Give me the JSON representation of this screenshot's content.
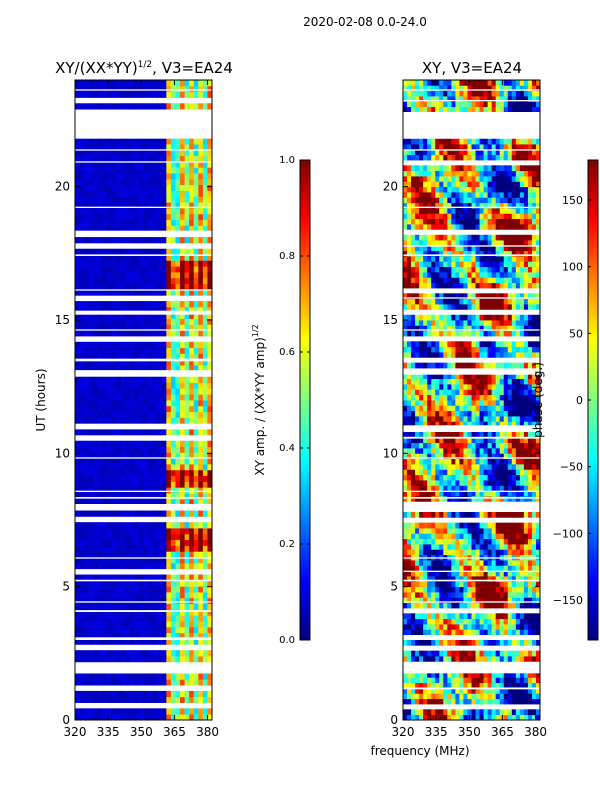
{
  "figure_title": "2020-02-08 0.0-24.0",
  "colors": {
    "jet": [
      "#00007f",
      "#0000ff",
      "#007fff",
      "#00ffff",
      "#7fff7f",
      "#ffff00",
      "#ff7f00",
      "#ff0000",
      "#7f0000"
    ],
    "axis": "#000000",
    "gap": "#ffffff"
  },
  "chart_data": [
    {
      "type": "heatmap",
      "title": "XY/(XX*YY)",
      "title_exponent": "1/2",
      "title_suffix": ", V3=EA24",
      "xlabel": "",
      "ylabel": "UT (hours)",
      "xlim": [
        320,
        382
      ],
      "ylim": [
        0,
        24
      ],
      "xticks": [
        320,
        335,
        350,
        365,
        380
      ],
      "yticks": [
        0,
        5,
        10,
        15,
        20
      ],
      "value_range": [
        0.0,
        1.0
      ],
      "colorbar_label": "XY amp. / (XX*YY amp)",
      "colorbar_label_exponent": "1/2",
      "colorbar_ticks": [
        "0.0",
        "0.2",
        "0.4",
        "0.6",
        "0.8",
        "1.0"
      ],
      "description_bands": {
        "background_level": 0.05,
        "active_frequency_range_mhz": [
          362,
          382
        ],
        "active_level": 0.55,
        "peak_time_ranges_h": [
          [
            6.3,
            7.3
          ],
          [
            8.7,
            9.3
          ],
          [
            16.2,
            17.2
          ]
        ],
        "peak_level": 0.9
      }
    },
    {
      "type": "heatmap",
      "title": "XY, V3=EA24",
      "xlabel": "frequency (MHz)",
      "ylabel": "",
      "xlim": [
        320,
        382
      ],
      "ylim": [
        0,
        24
      ],
      "xticks": [
        320,
        335,
        350,
        365,
        380
      ],
      "yticks": [
        0,
        5,
        10,
        15,
        20
      ],
      "value_range": [
        -180,
        180
      ],
      "colorbar_label": "phase (deg.)",
      "colorbar_ticks": [
        "150",
        "100",
        "50",
        "0",
        "−50",
        "−100",
        "−150"
      ],
      "colorbar_tick_values": [
        150,
        100,
        50,
        0,
        -50,
        -100,
        -150
      ]
    }
  ],
  "gaps_hours": [
    [
      21.8,
      22.8
    ],
    [
      0.45,
      0.55
    ],
    [
      1.15,
      1.22
    ],
    [
      1.75,
      2.1
    ],
    [
      2.7,
      2.78
    ],
    [
      3.0,
      3.1
    ],
    [
      4.05,
      4.12
    ],
    [
      4.4,
      4.45
    ],
    [
      5.2,
      5.26
    ],
    [
      5.55,
      5.6
    ],
    [
      6.05,
      6.1
    ],
    [
      7.5,
      7.55
    ],
    [
      7.9,
      8.1
    ],
    [
      8.3,
      8.36
    ],
    [
      8.55,
      8.6
    ],
    [
      9.8,
      9.85
    ],
    [
      10.55,
      10.62
    ],
    [
      10.9,
      11.05
    ],
    [
      12.95,
      13.12
    ],
    [
      13.45,
      13.55
    ],
    [
      14.25,
      14.3
    ],
    [
      14.6,
      14.65
    ],
    [
      15.2,
      15.35
    ],
    [
      15.8,
      15.85
    ],
    [
      16.1,
      16.15
    ],
    [
      17.4,
      17.46
    ],
    [
      17.75,
      17.8
    ],
    [
      18.2,
      18.35
    ],
    [
      19.2,
      19.25
    ],
    [
      20.9,
      20.95
    ],
    [
      21.35,
      21.4
    ],
    [
      23.2,
      23.25
    ],
    [
      23.6,
      23.65
    ]
  ]
}
